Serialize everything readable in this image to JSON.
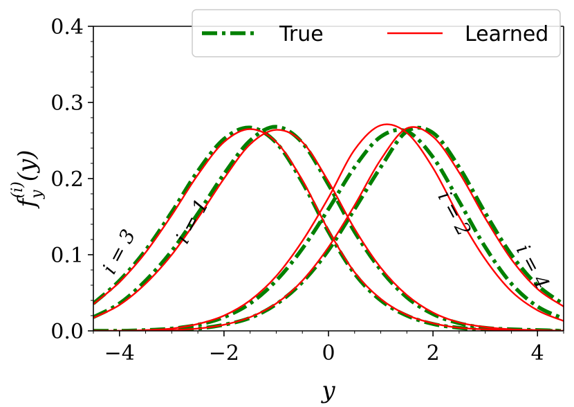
{
  "chart_data": {
    "type": "line",
    "title": "",
    "xlabel": "y",
    "ylabel": "f_y^{(i)}(y)",
    "xlim": [
      -4.5,
      4.5
    ],
    "ylim": [
      0.0,
      0.4
    ],
    "xticks": [
      -4,
      -2,
      0,
      2,
      4
    ],
    "xtick_labels": [
      "−4",
      "−2",
      "0",
      "2",
      "4"
    ],
    "yticks": [
      0.0,
      0.1,
      0.2,
      0.3,
      0.4
    ],
    "ytick_labels": [
      "0.0",
      "0.1",
      "0.2",
      "0.3",
      "0.4"
    ],
    "grid": false,
    "legend": {
      "placement": "top-right",
      "entries": [
        {
          "label": "True",
          "color": "#008000",
          "style": "dashdot"
        },
        {
          "label": "Learned",
          "color": "#ff0000",
          "style": "solid"
        }
      ]
    },
    "curve_labels": [
      {
        "text": "i = 3",
        "x": -3.9,
        "y": 0.1,
        "rotation": -62
      },
      {
        "text": "i = 1",
        "x": -2.5,
        "y": 0.14,
        "rotation": -62
      },
      {
        "text": "i = 2",
        "x": 2.3,
        "y": 0.15,
        "rotation": 62
      },
      {
        "text": "i = 4",
        "x": 3.8,
        "y": 0.08,
        "rotation": 62
      }
    ],
    "series": [
      {
        "name": "i = 1",
        "kind": "True",
        "color": "#008000",
        "x": [
          -4.5,
          -4,
          -3.5,
          -3,
          -2.5,
          -2,
          -1.5,
          -1,
          -0.5,
          0,
          0.5,
          1,
          1.5,
          2,
          2.5,
          3,
          3.5,
          4,
          4.5
        ],
        "values": [
          0.018,
          0.036,
          0.066,
          0.105,
          0.154,
          0.206,
          0.25,
          0.268,
          0.247,
          0.192,
          0.13,
          0.08,
          0.044,
          0.022,
          0.01,
          0.004,
          0.002,
          0.001,
          0.0
        ]
      },
      {
        "name": "i = 1",
        "kind": "Learned",
        "color": "#ff0000",
        "x": [
          -4.5,
          -4,
          -3.5,
          -3,
          -2.5,
          -2,
          -1.5,
          -1,
          -0.5,
          0,
          0.5,
          1,
          1.5,
          2,
          2.5,
          3,
          3.5,
          4,
          4.5
        ],
        "values": [
          0.017,
          0.034,
          0.062,
          0.1,
          0.148,
          0.2,
          0.245,
          0.264,
          0.248,
          0.196,
          0.134,
          0.083,
          0.047,
          0.024,
          0.011,
          0.005,
          0.002,
          0.001,
          0.0
        ]
      },
      {
        "name": "i = 3",
        "kind": "True",
        "color": "#008000",
        "x": [
          -4.5,
          -4,
          -3.5,
          -3,
          -2.5,
          -2,
          -1.5,
          -1,
          -0.5,
          0,
          0.5,
          1,
          1.5,
          2,
          2.5,
          3,
          3.5,
          4,
          4.5
        ],
        "values": [
          0.036,
          0.066,
          0.106,
          0.156,
          0.21,
          0.252,
          0.267,
          0.247,
          0.195,
          0.13,
          0.075,
          0.04,
          0.02,
          0.009,
          0.004,
          0.001,
          0.0,
          0.0,
          0.0
        ]
      },
      {
        "name": "i = 3",
        "kind": "Learned",
        "color": "#ff0000",
        "x": [
          -4.5,
          -4,
          -3.5,
          -3,
          -2.5,
          -2,
          -1.5,
          -1,
          -0.5,
          0,
          0.5,
          1,
          1.5,
          2,
          2.5,
          3,
          3.5,
          4,
          4.5
        ],
        "values": [
          0.035,
          0.064,
          0.103,
          0.152,
          0.205,
          0.248,
          0.265,
          0.248,
          0.198,
          0.132,
          0.077,
          0.042,
          0.021,
          0.01,
          0.004,
          0.002,
          0.001,
          0.0,
          0.0
        ]
      },
      {
        "name": "i = 2",
        "kind": "True",
        "color": "#008000",
        "x": [
          -4.5,
          -4,
          -3.5,
          -3,
          -2.5,
          -2,
          -1.5,
          -1,
          -0.5,
          0,
          0.5,
          1,
          1.5,
          2,
          2.5,
          3,
          3.5,
          4,
          4.5
        ],
        "values": [
          0.0,
          0.0,
          0.001,
          0.003,
          0.008,
          0.018,
          0.036,
          0.066,
          0.108,
          0.16,
          0.215,
          0.255,
          0.262,
          0.228,
          0.17,
          0.11,
          0.062,
          0.032,
          0.016
        ]
      },
      {
        "name": "i = 2",
        "kind": "Learned",
        "color": "#ff0000",
        "x": [
          -4.5,
          -4,
          -3.5,
          -3,
          -2.5,
          -2,
          -1.5,
          -1,
          -0.5,
          0,
          0.5,
          1,
          1.5,
          2,
          2.5,
          3,
          3.5,
          4,
          4.5
        ],
        "values": [
          0.0,
          0.0,
          0.001,
          0.003,
          0.009,
          0.02,
          0.04,
          0.072,
          0.118,
          0.175,
          0.238,
          0.27,
          0.26,
          0.214,
          0.15,
          0.094,
          0.052,
          0.027,
          0.013
        ]
      },
      {
        "name": "i = 4",
        "kind": "True",
        "color": "#008000",
        "x": [
          -4.5,
          -4,
          -3.5,
          -3,
          -2.5,
          -2,
          -1.5,
          -1,
          -0.5,
          0,
          0.5,
          1,
          1.5,
          2,
          2.5,
          3,
          3.5,
          4,
          4.5
        ],
        "values": [
          0.0,
          0.0,
          0.0,
          0.001,
          0.003,
          0.008,
          0.017,
          0.035,
          0.064,
          0.106,
          0.16,
          0.215,
          0.262,
          0.26,
          0.215,
          0.155,
          0.1,
          0.06,
          0.035
        ]
      },
      {
        "name": "i = 4",
        "kind": "Learned",
        "color": "#ff0000",
        "x": [
          -4.5,
          -4,
          -3.5,
          -3,
          -2.5,
          -2,
          -1.5,
          -1,
          -0.5,
          0,
          0.5,
          1,
          1.5,
          2,
          2.5,
          3,
          3.5,
          4,
          4.5
        ],
        "values": [
          0.0,
          0.0,
          0.0,
          0.001,
          0.003,
          0.008,
          0.018,
          0.036,
          0.066,
          0.11,
          0.165,
          0.225,
          0.266,
          0.255,
          0.208,
          0.148,
          0.094,
          0.055,
          0.032
        ]
      }
    ]
  }
}
